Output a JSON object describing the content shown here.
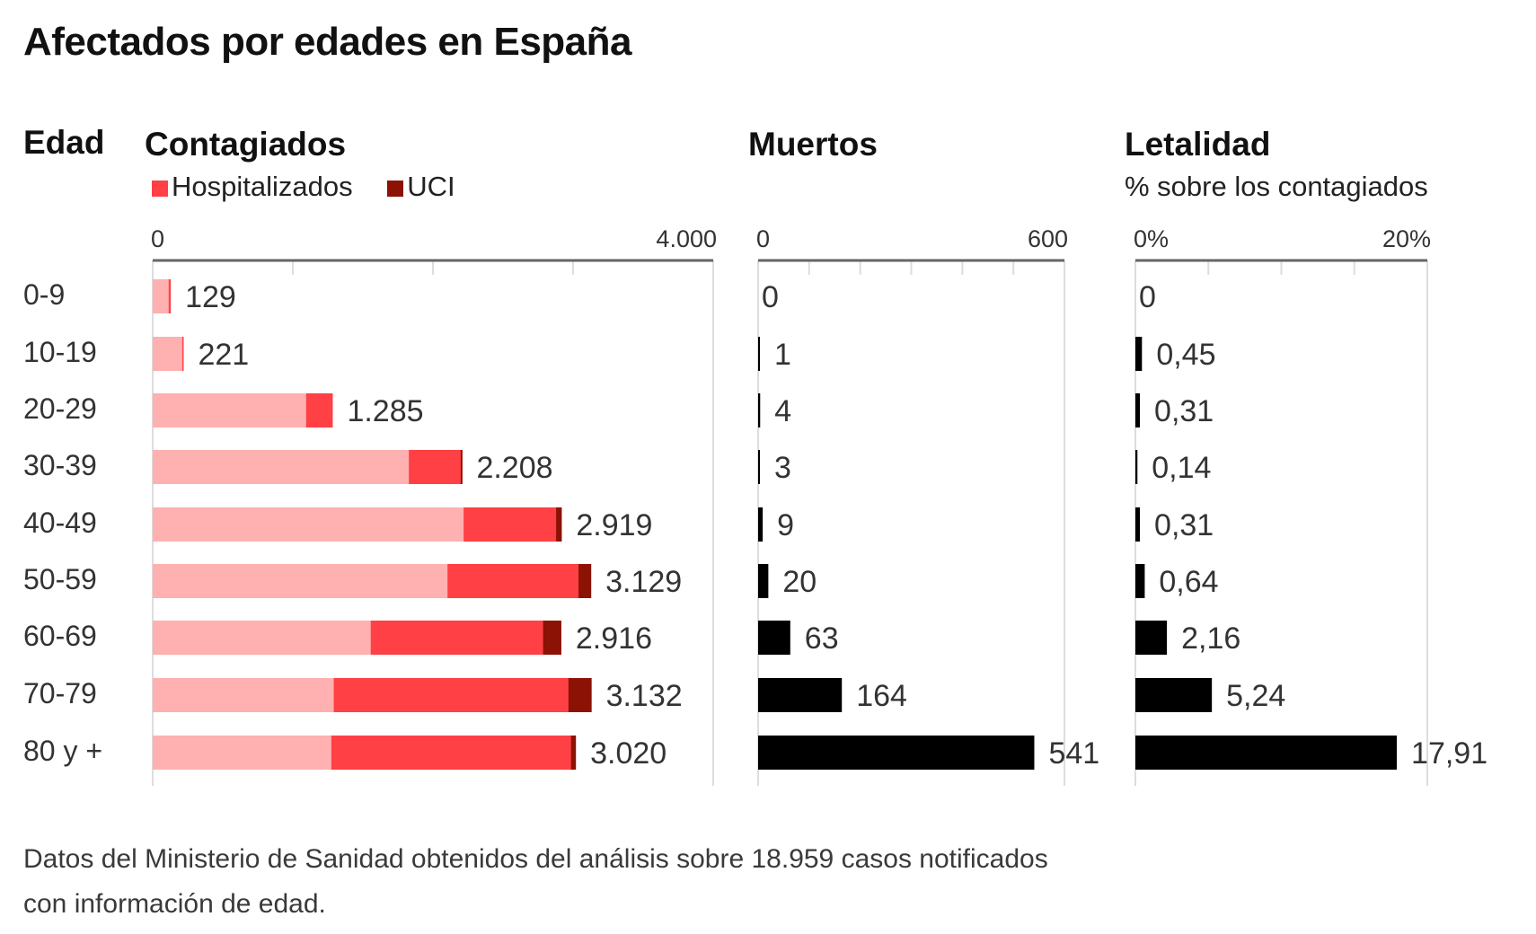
{
  "title": "Afectados por edades en España",
  "headers": {
    "edad": "Edad",
    "contagiados": "Contagiados",
    "muertos": "Muertos",
    "letalidad": "Letalidad",
    "letalidad_sub": "% sobre los contagiados"
  },
  "legend": [
    {
      "label": "Hospitalizados",
      "color": "#ff4044"
    },
    {
      "label": "UCI",
      "color": "#8b1204"
    }
  ],
  "footnote": {
    "line1": "Datos del Ministerio de Sanidad obtenidos del análisis sobre 18.959 casos notificados",
    "line2": "con información de edad."
  },
  "colors": {
    "contagiados": "#ffb0b0",
    "hospitalizados": "#ff4044",
    "uci": "#8b1204",
    "muertos": "#000000",
    "letalidad": "#000000",
    "axis": "#666666",
    "grid": "#dddddd",
    "label": "#333333"
  },
  "chart_data": [
    {
      "type": "bar",
      "title": "Contagiados",
      "orientation": "horizontal",
      "stacked": true,
      "categories": [
        "0-9",
        "10-19",
        "20-29",
        "30-39",
        "40-49",
        "50-59",
        "60-69",
        "70-79",
        "80 y +"
      ],
      "series": [
        {
          "name": "Contagiados (total)",
          "values": [
            129,
            221,
            1285,
            2208,
            2919,
            3129,
            2916,
            3132,
            3020
          ]
        },
        {
          "name": "Hospitalizados",
          "values": [
            15,
            10,
            190,
            380,
            700,
            1025,
            1360,
            1840,
            1745
          ]
        },
        {
          "name": "UCI",
          "values": [
            0,
            0,
            0,
            10,
            40,
            90,
            130,
            165,
            35
          ]
        }
      ],
      "value_labels": [
        "129",
        "221",
        "1.285",
        "2.208",
        "2.919",
        "3.129",
        "2.916",
        "3.132",
        "3.020"
      ],
      "xlim": [
        0,
        4000
      ],
      "tick_labels": [
        "0",
        "4.000"
      ],
      "gridlines_every": 1000
    },
    {
      "type": "bar",
      "title": "Muertos",
      "orientation": "horizontal",
      "categories": [
        "0-9",
        "10-19",
        "20-29",
        "30-39",
        "40-49",
        "50-59",
        "60-69",
        "70-79",
        "80 y +"
      ],
      "values": [
        0,
        1,
        4,
        3,
        9,
        20,
        63,
        164,
        541
      ],
      "value_labels": [
        "0",
        "1",
        "4",
        "3",
        "9",
        "20",
        "63",
        "164",
        "541"
      ],
      "xlim": [
        0,
        600
      ],
      "tick_labels": [
        "0",
        "600"
      ],
      "gridlines_every": 100
    },
    {
      "type": "bar",
      "title": "Letalidad",
      "subtitle": "% sobre los contagiados",
      "orientation": "horizontal",
      "categories": [
        "0-9",
        "10-19",
        "20-29",
        "30-39",
        "40-49",
        "50-59",
        "60-69",
        "70-79",
        "80 y +"
      ],
      "values": [
        0,
        0.45,
        0.31,
        0.14,
        0.31,
        0.64,
        2.16,
        5.24,
        17.91
      ],
      "value_labels": [
        "0",
        "0,45",
        "0,31",
        "0,14",
        "0,31",
        "0,64",
        "2,16",
        "5,24",
        "17,91"
      ],
      "xlim": [
        0,
        20
      ],
      "tick_labels": [
        "0%",
        "20%"
      ],
      "gridlines_every": 5
    }
  ]
}
